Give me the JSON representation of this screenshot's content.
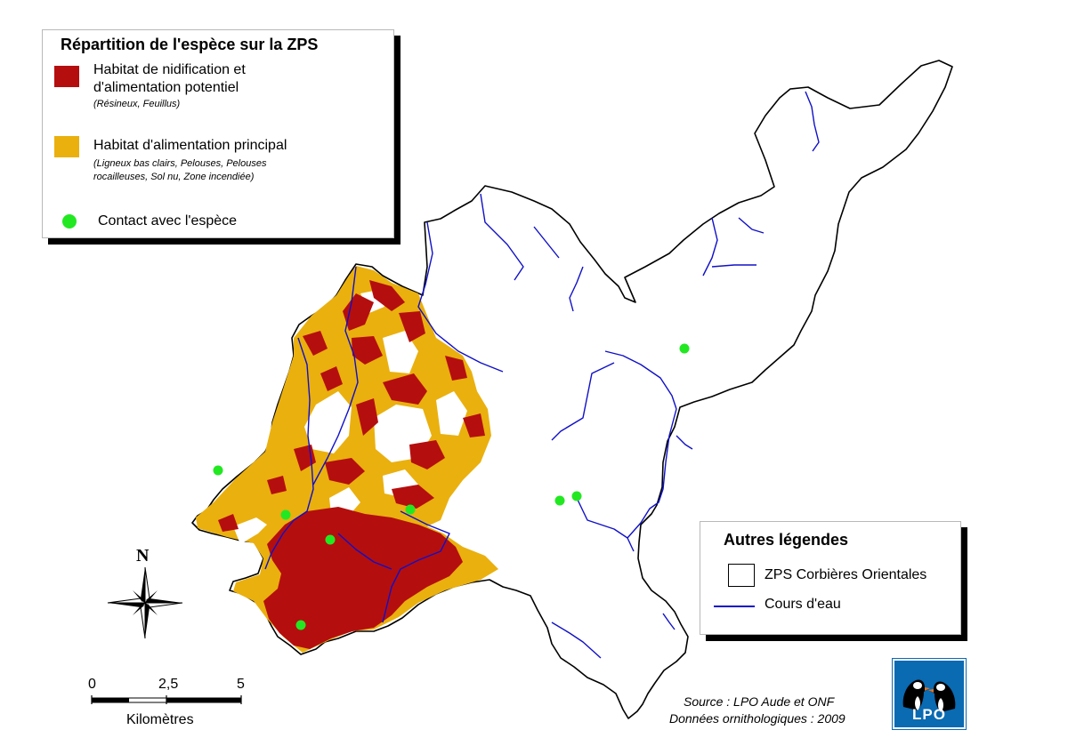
{
  "legend_species": {
    "title": "Répartition de l'espèce sur la ZPS",
    "items": [
      {
        "label_line1": "Habitat de nidification et",
        "label_line2": "d'alimentation potentiel",
        "sub_line1": "(Résineux, Feuillus)",
        "sub_line2": "",
        "color": "#b50e0e"
      },
      {
        "label_line1": "Habitat d'alimentation principal",
        "label_line2": "",
        "sub_line1": "(Ligneux bas clairs, Pelouses, Pelouses",
        "sub_line2": "rocailleuses, Sol nu, Zone incendiée)",
        "color": "#eab00e"
      },
      {
        "label_line1": "Contact avec l'espèce",
        "label_line2": "",
        "sub_line1": "",
        "sub_line2": "",
        "color": "#22e822"
      }
    ]
  },
  "legend_other": {
    "title": "Autres légendes",
    "items": [
      {
        "label": "ZPS Corbières Orientales",
        "symbol": "polygon-outline",
        "color": "#000000"
      },
      {
        "label": "Cours d'eau",
        "symbol": "line",
        "color": "#1010c8"
      }
    ]
  },
  "north_arrow": {
    "label": "N",
    "icon": "compass-rose-icon"
  },
  "scale_bar": {
    "ticks": [
      "0",
      "2,5",
      "5"
    ],
    "unit": "Kilomètres"
  },
  "source": {
    "line1": "Source : LPO Aude et ONF",
    "line2": "Données ornithologiques : 2009"
  },
  "logo": {
    "text": "LPO",
    "icon": "puffins-logo-icon"
  },
  "colors": {
    "nesting": "#b50e0e",
    "feeding": "#eab00e",
    "contact": "#22e822",
    "river": "#1010c8",
    "boundary": "#000000"
  }
}
